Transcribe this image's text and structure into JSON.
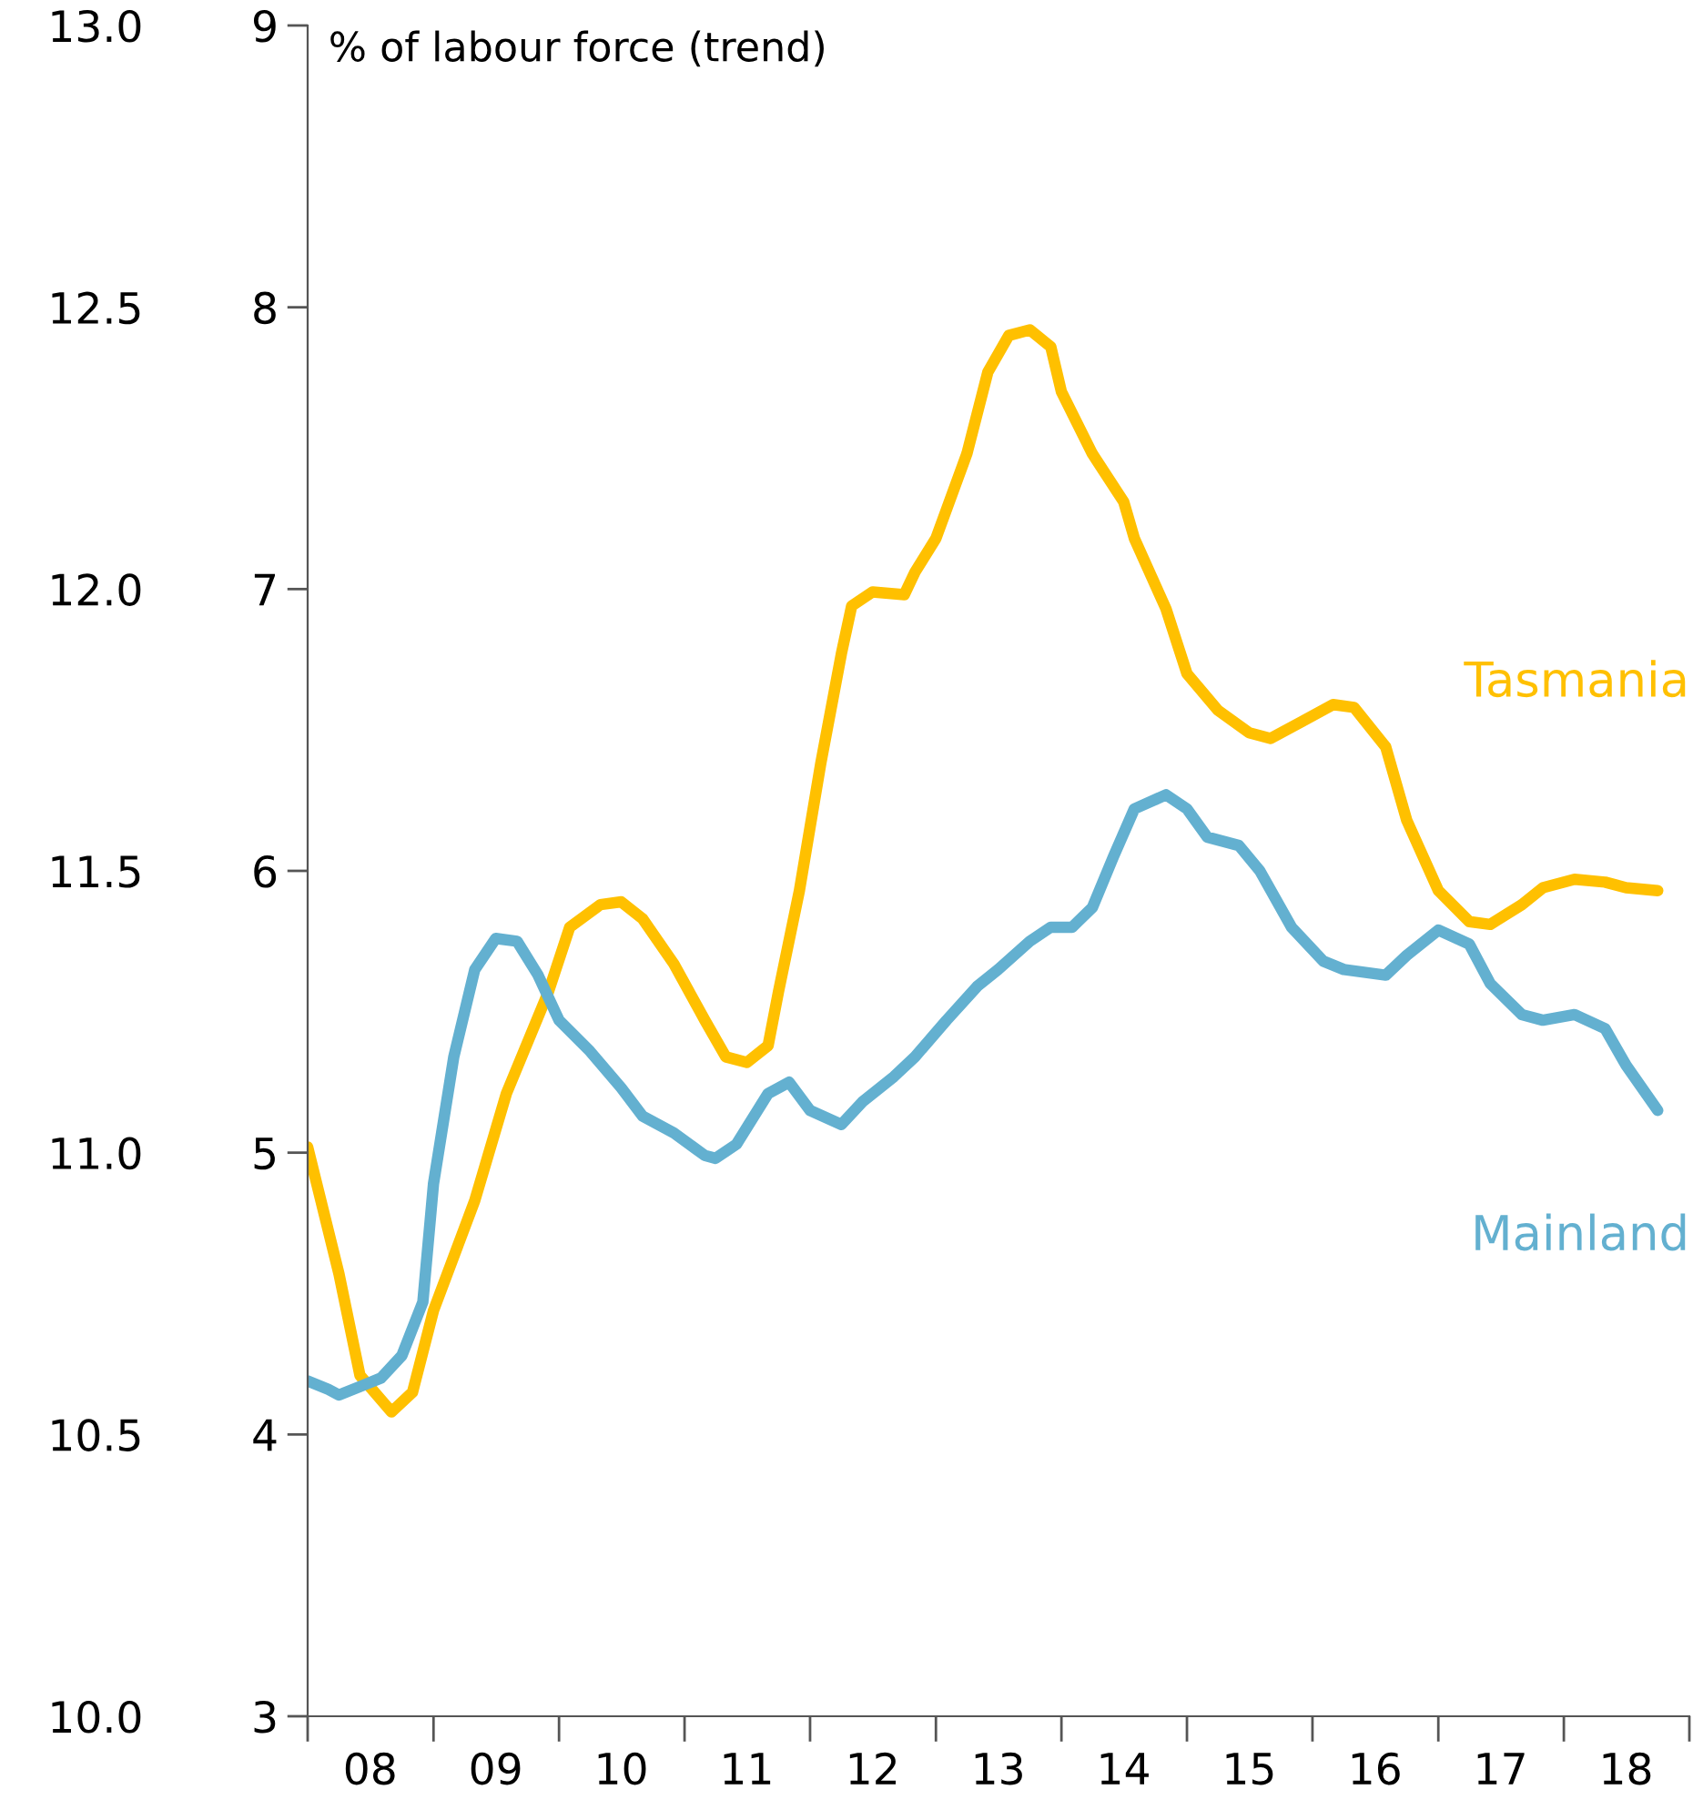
{
  "chart_data": {
    "type": "line",
    "ylabel": "% of labour force (trend)",
    "xlim": [
      "2008-01",
      "2019-01"
    ],
    "xticks": [
      {
        "value": "2008-01",
        "label": null
      },
      {
        "value": "2008-07",
        "label": "08"
      },
      {
        "value": "2009-01",
        "label": null
      },
      {
        "value": "2009-07",
        "label": "09"
      },
      {
        "value": "2010-01",
        "label": null
      },
      {
        "value": "2010-07",
        "label": "10"
      },
      {
        "value": "2011-01",
        "label": null
      },
      {
        "value": "2011-07",
        "label": "11"
      },
      {
        "value": "2012-01",
        "label": null
      },
      {
        "value": "2012-07",
        "label": "12"
      },
      {
        "value": "2013-01",
        "label": null
      },
      {
        "value": "2013-07",
        "label": "13"
      },
      {
        "value": "2014-01",
        "label": null
      },
      {
        "value": "2014-07",
        "label": "14"
      },
      {
        "value": "2015-01",
        "label": null
      },
      {
        "value": "2015-07",
        "label": "15"
      },
      {
        "value": "2016-01",
        "label": null
      },
      {
        "value": "2016-07",
        "label": "16"
      },
      {
        "value": "2017-01",
        "label": null
      },
      {
        "value": "2017-07",
        "label": "17"
      },
      {
        "value": "2018-01",
        "label": null
      },
      {
        "value": "2018-07",
        "label": "18"
      },
      {
        "value": "2019-01",
        "label": null
      }
    ],
    "ylim": [
      3,
      9
    ],
    "yticks": [
      3,
      4,
      5,
      6,
      7,
      8,
      9
    ],
    "y2lim": [
      10,
      13
    ],
    "y2ticks": [
      {
        "value": 10,
        "label": "10.0"
      },
      {
        "value": 10.5,
        "label": "10.5"
      },
      {
        "value": 11,
        "label": "11.0"
      },
      {
        "value": 11.5,
        "label": "11.5"
      },
      {
        "value": 12,
        "label": "12.0"
      },
      {
        "value": 12.5,
        "label": "12.5"
      },
      {
        "value": 13,
        "label": "13.0"
      }
    ],
    "grid": false,
    "legend": false,
    "marker": "none",
    "line_style": "solid",
    "series": [
      {
        "name": "Tasmania",
        "color": "#ffc000",
        "x": [
          "2008-01",
          "2008-04",
          "2008-06",
          "2008-09",
          "2008-11",
          "2009-01",
          "2009-05",
          "2009-08",
          "2009-12",
          "2010-02",
          "2010-05",
          "2010-07",
          "2010-09",
          "2010-12",
          "2011-03",
          "2011-05",
          "2011-07",
          "2011-09",
          "2011-10",
          "2011-12",
          "2012-02",
          "2012-04",
          "2012-05",
          "2012-07",
          "2012-10",
          "2012-11",
          "2013-01",
          "2013-04",
          "2013-06",
          "2013-08",
          "2013-10",
          "2013-12",
          "2014-01",
          "2014-04",
          "2014-07",
          "2014-08",
          "2014-11",
          "2015-01",
          "2015-04",
          "2015-07",
          "2015-09",
          "2015-12",
          "2016-03",
          "2016-05",
          "2016-08",
          "2016-10",
          "2017-01",
          "2017-04",
          "2017-06",
          "2017-09",
          "2017-11",
          "2018-02",
          "2018-05",
          "2018-07",
          "2018-10"
        ],
        "values": [
          5.02,
          4.57,
          4.21,
          4.08,
          4.15,
          4.44,
          4.83,
          5.21,
          5.57,
          5.8,
          5.88,
          5.89,
          5.83,
          5.67,
          5.47,
          5.34,
          5.32,
          5.38,
          5.57,
          5.93,
          6.38,
          6.77,
          6.94,
          6.99,
          6.98,
          7.06,
          7.18,
          7.48,
          7.77,
          7.9,
          7.92,
          7.86,
          7.7,
          7.48,
          7.31,
          7.18,
          6.93,
          6.7,
          6.57,
          6.49,
          6.47,
          6.53,
          6.59,
          6.58,
          6.44,
          6.18,
          5.93,
          5.82,
          5.81,
          5.88,
          5.94,
          5.97,
          5.96,
          5.94,
          5.93
        ]
      },
      {
        "name": "Mainland",
        "color": "#63b0d0",
        "x": [
          "2008-01",
          "2008-03",
          "2008-04",
          "2008-06",
          "2008-08",
          "2008-10",
          "2008-12",
          "2009-01",
          "2009-03",
          "2009-05",
          "2009-07",
          "2009-09",
          "2009-11",
          "2010-01",
          "2010-04",
          "2010-07",
          "2010-09",
          "2010-12",
          "2011-03",
          "2011-04",
          "2011-06",
          "2011-09",
          "2011-11",
          "2012-01",
          "2012-04",
          "2012-06",
          "2012-09",
          "2012-11",
          "2013-02",
          "2013-05",
          "2013-07",
          "2013-10",
          "2013-12",
          "2014-02",
          "2014-04",
          "2014-06",
          "2014-08",
          "2014-11",
          "2015-01",
          "2015-03",
          "2015-06",
          "2015-08",
          "2015-11",
          "2016-02",
          "2016-04",
          "2016-08",
          "2016-10",
          "2017-01",
          "2017-04",
          "2017-06",
          "2017-09",
          "2017-11",
          "2018-02",
          "2018-05",
          "2018-07",
          "2018-10"
        ],
        "values": [
          4.19,
          4.16,
          4.14,
          4.17,
          4.2,
          4.28,
          4.47,
          4.89,
          5.34,
          5.65,
          5.76,
          5.75,
          5.63,
          5.47,
          5.36,
          5.23,
          5.13,
          5.07,
          4.99,
          4.98,
          5.03,
          5.21,
          5.25,
          5.15,
          5.1,
          5.18,
          5.27,
          5.34,
          5.47,
          5.59,
          5.65,
          5.75,
          5.8,
          5.8,
          5.87,
          6.05,
          6.22,
          6.27,
          6.22,
          6.12,
          6.09,
          6.0,
          5.8,
          5.68,
          5.65,
          5.63,
          5.7,
          5.79,
          5.74,
          5.6,
          5.49,
          5.47,
          5.49,
          5.44,
          5.31,
          5.15
        ]
      }
    ]
  }
}
